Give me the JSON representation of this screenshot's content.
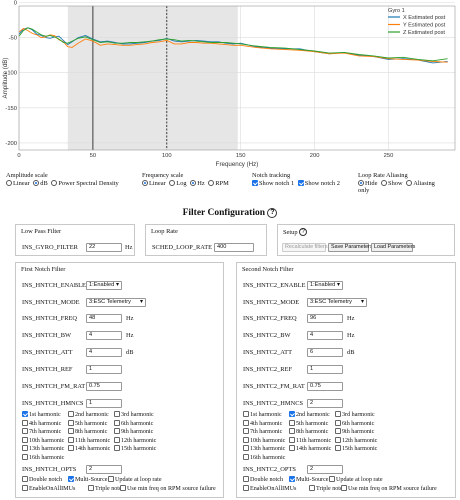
{
  "chart_data": {
    "type": "line",
    "xlabel": "Frequency (Hz)",
    "ylabel": "Amplitude (dB)",
    "xlim": [
      0,
      295
    ],
    "ylim": [
      -210,
      -5
    ],
    "xticks": [
      0,
      50,
      100,
      150,
      200,
      250
    ],
    "yticks": [
      0,
      -50,
      -100,
      -150,
      -200
    ],
    "legend_title": "Gyro 1",
    "legend_position": "top-right",
    "shaded_band": [
      33,
      148
    ],
    "notch_lines": [
      {
        "x": 50,
        "style": "solid"
      },
      {
        "x": 100,
        "style": "dashed"
      }
    ],
    "series": [
      {
        "name": "X Estimated post",
        "color": "#1f77b4",
        "x": [
          0,
          3,
          6,
          9,
          12,
          15,
          18,
          21,
          24,
          27,
          30,
          33,
          36,
          40,
          45,
          50,
          55,
          60,
          65,
          70,
          75,
          80,
          85,
          90,
          95,
          100,
          105,
          110,
          115,
          120,
          125,
          130,
          135,
          140,
          145,
          150,
          160,
          170,
          180,
          190,
          200,
          210,
          220,
          230,
          240,
          250,
          260,
          270,
          280,
          290
        ],
        "y": [
          -45,
          -38,
          -36,
          -39,
          -45,
          -47,
          -50,
          -51,
          -49,
          -48,
          -54,
          -60,
          -56,
          -50,
          -47,
          -52,
          -56,
          -55,
          -57,
          -59,
          -59,
          -58,
          -57,
          -55,
          -54,
          -51,
          -55,
          -56,
          -55,
          -54,
          -55,
          -56,
          -56,
          -58,
          -59,
          -58,
          -63,
          -65,
          -66,
          -66,
          -70,
          -73,
          -71,
          -75,
          -77,
          -81,
          -80,
          -82,
          -86,
          -84
        ]
      },
      {
        "name": "Y Estimated post",
        "color": "#ff7f0e",
        "x": [
          0,
          3,
          6,
          9,
          12,
          15,
          18,
          21,
          24,
          27,
          30,
          33,
          36,
          40,
          45,
          50,
          55,
          60,
          65,
          70,
          75,
          80,
          85,
          90,
          95,
          100,
          105,
          110,
          115,
          120,
          125,
          130,
          135,
          140,
          145,
          150,
          160,
          170,
          180,
          190,
          200,
          210,
          220,
          230,
          240,
          250,
          260,
          270,
          280,
          290
        ],
        "y": [
          -42,
          -37,
          -40,
          -44,
          -46,
          -50,
          -49,
          -46,
          -47,
          -53,
          -56,
          -63,
          -64,
          -58,
          -52,
          -55,
          -61,
          -59,
          -60,
          -61,
          -61,
          -60,
          -59,
          -57,
          -56,
          -54,
          -59,
          -59,
          -57,
          -57,
          -58,
          -58,
          -59,
          -60,
          -61,
          -61,
          -64,
          -66,
          -67,
          -68,
          -70,
          -73,
          -72,
          -76,
          -77,
          -80,
          -81,
          -82,
          -84,
          -85
        ]
      },
      {
        "name": "Z Estimated post",
        "color": "#2ca02c",
        "x": [
          0,
          3,
          6,
          9,
          12,
          15,
          18,
          21,
          24,
          27,
          30,
          33,
          36,
          40,
          45,
          50,
          55,
          60,
          65,
          70,
          75,
          80,
          85,
          90,
          95,
          100,
          105,
          110,
          115,
          120,
          125,
          130,
          135,
          140,
          145,
          150,
          160,
          170,
          180,
          190,
          200,
          210,
          220,
          230,
          240,
          250,
          260,
          270,
          280,
          290
        ],
        "y": [
          -48,
          -40,
          -36,
          -38,
          -42,
          -46,
          -48,
          -47,
          -49,
          -52,
          -57,
          -58,
          -55,
          -51,
          -49,
          -53,
          -57,
          -56,
          -58,
          -58,
          -57,
          -57,
          -56,
          -55,
          -53,
          -52,
          -53,
          -55,
          -54,
          -55,
          -56,
          -57,
          -57,
          -57,
          -58,
          -59,
          -62,
          -64,
          -65,
          -67,
          -69,
          -72,
          -71,
          -74,
          -76,
          -79,
          -78,
          -81,
          -83,
          -80
        ]
      }
    ]
  },
  "amplitude": {
    "title": "Amplitude scale",
    "options": [
      "Linear",
      "dB",
      "Power Spectral Density"
    ],
    "selected": "dB"
  },
  "frequency": {
    "title": "Frequency scale",
    "options": [
      "Linear",
      "Log",
      "Hz",
      "RPM"
    ]
  },
  "notch": {
    "title": "Notch tracking",
    "options": [
      "Show notch 1",
      "Show notch 2"
    ]
  },
  "aliasing": {
    "title": "Loop Rate Aliasing",
    "options": [
      "Hide",
      "Show",
      "Aliasing"
    ],
    "extra": "only"
  },
  "filter_title": "Filter Configuration",
  "help_glyph": "?",
  "lowpass": {
    "legend": "Low Pass Filter",
    "label": "INS_GYRO_FILTER",
    "value": "22",
    "unit": "Hz"
  },
  "looprate": {
    "legend": "Loop Rate",
    "label": "SCHED_LOOP_RATE",
    "value": "400"
  },
  "setup": {
    "legend": "Setup",
    "recalc": "Recalculate filters",
    "save": "Save Parameters",
    "load": "Load Parameters"
  },
  "notch1": {
    "legend": "First Notch Filter",
    "rows": [
      {
        "label": "INS_HNTCH_ENABLE",
        "value": "1:Enabled",
        "unit": ""
      },
      {
        "label": "INS_HNTCH_MODE",
        "value": "3:ESC Telemetry",
        "unit": ""
      },
      {
        "label": "INS_HNTCH_FREQ",
        "value": "48",
        "unit": "Hz"
      },
      {
        "label": "INS_HNTCH_BW",
        "value": "4",
        "unit": "Hz"
      },
      {
        "label": "INS_HNTCH_ATT",
        "value": "4",
        "unit": "dB"
      },
      {
        "label": "INS_HNTCH_REF",
        "value": "1",
        "unit": ""
      },
      {
        "label": "INS_HNTCH_FM_RAT",
        "value": "0.75",
        "unit": ""
      },
      {
        "label": "INS_HNTCH_HMNCS",
        "value": "1",
        "unit": ""
      }
    ],
    "opts_label": "INS_HNTCH_OPTS",
    "opts_value": "2"
  },
  "notch2": {
    "legend": "Second Notch Filter",
    "rows": [
      {
        "label": "INS_HNTC2_ENABLE",
        "value": "1:Enabled",
        "unit": ""
      },
      {
        "label": "INS_HNTC2_MODE",
        "value": "3:ESC Telemetry",
        "unit": ""
      },
      {
        "label": "INS_HNTC2_FREQ",
        "value": "96",
        "unit": "Hz"
      },
      {
        "label": "INS_HNTC2_BW",
        "value": "4",
        "unit": "Hz"
      },
      {
        "label": "INS_HNTC2_ATT",
        "value": "6",
        "unit": "dB"
      },
      {
        "label": "INS_HNTC2_REF",
        "value": "1",
        "unit": ""
      },
      {
        "label": "INS_HNTC2_FM_RAT",
        "value": "0.75",
        "unit": ""
      },
      {
        "label": "INS_HNTC2_HMNCS",
        "value": "2",
        "unit": ""
      }
    ],
    "opts_label": "INS_HNTC2_OPTS",
    "opts_value": "2"
  },
  "harmonics": [
    "1st harmonic",
    "2nd harmonic",
    "3rd harmonic",
    "4th harmonic",
    "5th harmonic",
    "6th harmonic",
    "7th harmonic",
    "8th harmonic",
    "9th harmonic",
    "10th harmonic",
    "11th harmonic",
    "12th harmonic",
    "13th harmonic",
    "14th harmonic",
    "15th harmonic",
    "16th harmonic"
  ],
  "notch_opts": [
    "Double notch",
    "Multi-Source",
    "Update at loop rate",
    "EnableOnAllIMUs",
    "Triple notch",
    "Use min freq on RPM source failure"
  ]
}
